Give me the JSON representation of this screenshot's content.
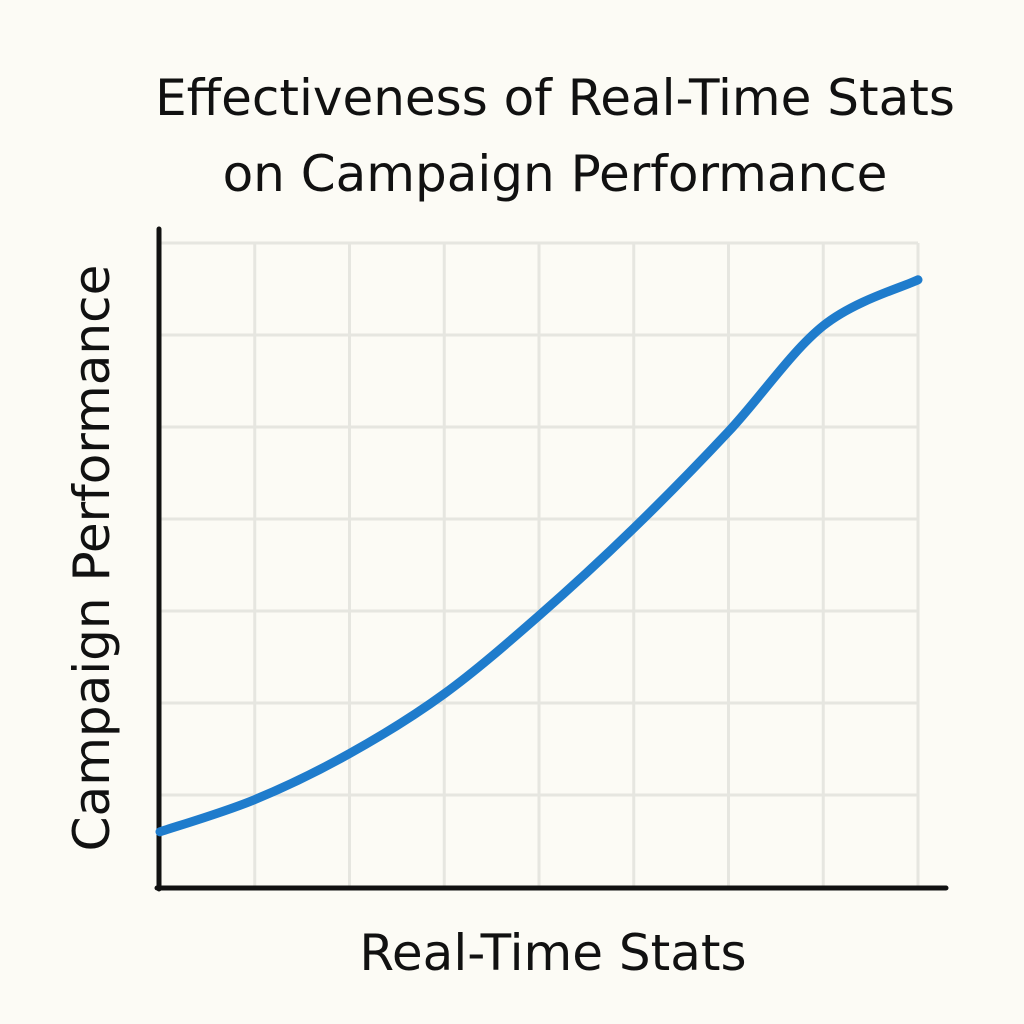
{
  "chart_data": {
    "type": "line",
    "title": "Effectiveness of Real-Time Stats",
    "subtitle": "on Campaign Performance",
    "xlabel": "Real-Time Stats",
    "ylabel": "Campaign Performance",
    "xlim": [
      0,
      8
    ],
    "ylim": [
      0,
      7
    ],
    "grid": true,
    "legend": "none",
    "colors": {
      "line": "#1f7ccc",
      "grid": "#e6e6e0",
      "axis": "#111111",
      "background": "#fcfbf5"
    },
    "series": [
      {
        "x": [
          0,
          1,
          2,
          3,
          4,
          5,
          6,
          7,
          8
        ],
        "values": [
          0.6,
          0.95,
          1.45,
          2.1,
          2.95,
          3.9,
          4.95,
          6.1,
          6.6
        ]
      }
    ]
  }
}
